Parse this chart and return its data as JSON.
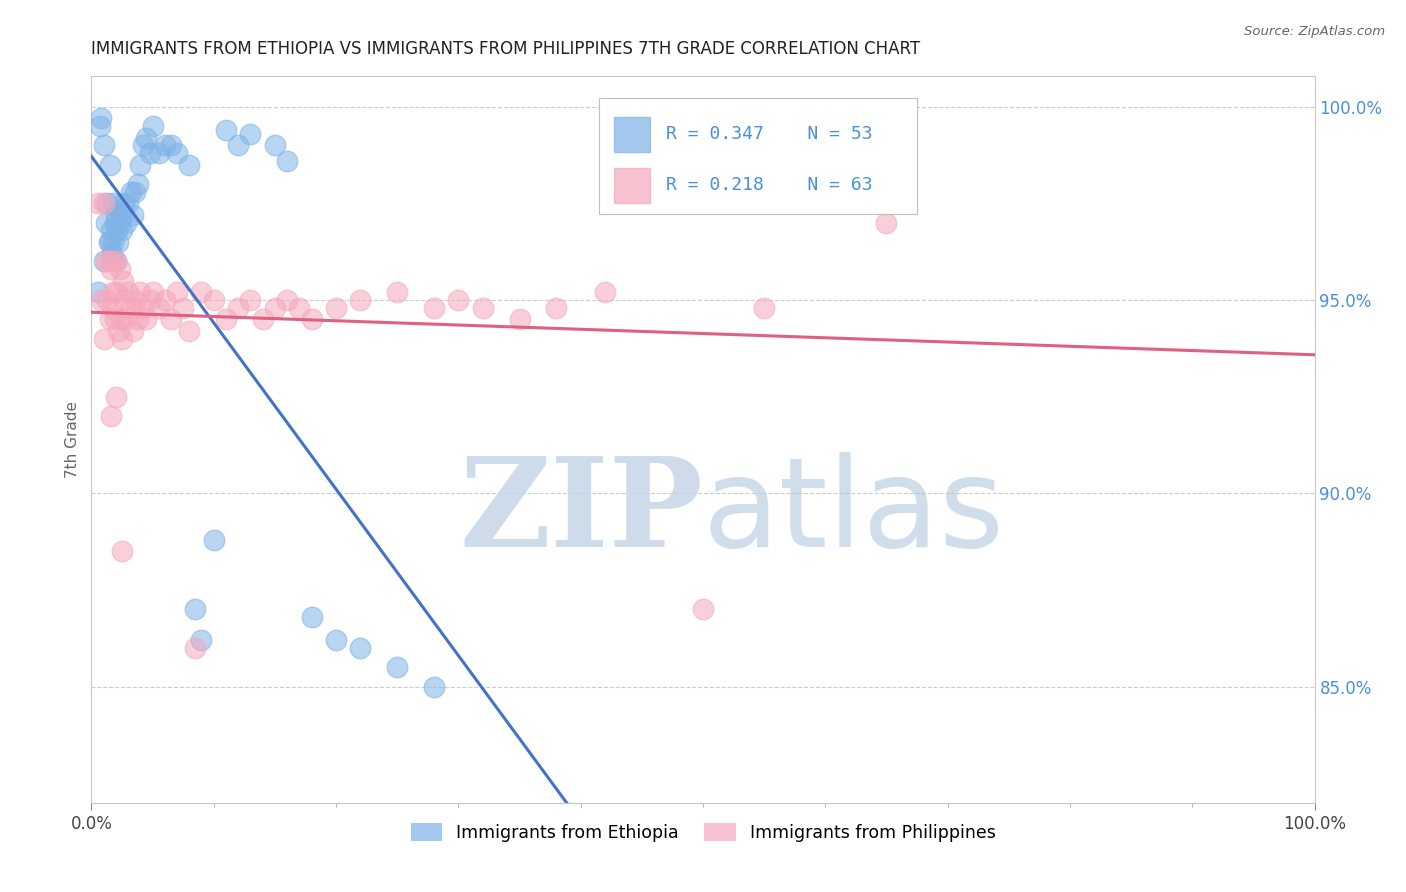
{
  "title": "IMMIGRANTS FROM ETHIOPIA VS IMMIGRANTS FROM PHILIPPINES 7TH GRADE CORRELATION CHART",
  "source": "Source: ZipAtlas.com",
  "ylabel": "7th Grade",
  "xlim": [
    0.0,
    1.0
  ],
  "ylim": [
    0.82,
    1.008
  ],
  "yticks": [
    0.85,
    0.9,
    0.95,
    1.0
  ],
  "ytick_labels": [
    "85.0%",
    "90.0%",
    "95.0%",
    "100.0%"
  ],
  "xtick_labels": [
    "0.0%",
    "100.0%"
  ],
  "legend_label1": "Immigrants from Ethiopia",
  "legend_label2": "Immigrants from Philippines",
  "R1": 0.347,
  "N1": 53,
  "R2": 0.218,
  "N2": 63,
  "blue_color": "#7fb3e8",
  "pink_color": "#f5a8bb",
  "blue_line_color": "#4472c4",
  "pink_line_color": "#e06080",
  "background_color": "#ffffff",
  "grid_color": "#c8c8c8",
  "watermark_zip_color": "#c5d5e8",
  "watermark_atlas_color": "#b0c8dc",
  "blue_x": [
    0.005,
    0.007,
    0.008,
    0.01,
    0.01,
    0.012,
    0.013,
    0.014,
    0.015,
    0.015,
    0.016,
    0.017,
    0.018,
    0.018,
    0.019,
    0.02,
    0.02,
    0.021,
    0.022,
    0.023,
    0.024,
    0.025,
    0.026,
    0.027,
    0.028,
    0.03,
    0.032,
    0.034,
    0.036,
    0.038,
    0.04,
    0.042,
    0.045,
    0.048,
    0.05,
    0.055,
    0.06,
    0.065,
    0.07,
    0.08,
    0.085,
    0.09,
    0.1,
    0.11,
    0.12,
    0.13,
    0.15,
    0.16,
    0.18,
    0.2,
    0.22,
    0.25,
    0.28
  ],
  "blue_y": [
    0.952,
    0.995,
    0.997,
    0.96,
    0.99,
    0.97,
    0.975,
    0.965,
    0.965,
    0.985,
    0.968,
    0.962,
    0.965,
    0.975,
    0.97,
    0.96,
    0.972,
    0.968,
    0.965,
    0.97,
    0.973,
    0.968,
    0.972,
    0.975,
    0.97,
    0.975,
    0.978,
    0.972,
    0.978,
    0.98,
    0.985,
    0.99,
    0.992,
    0.988,
    0.995,
    0.988,
    0.99,
    0.99,
    0.988,
    0.985,
    0.87,
    0.862,
    0.888,
    0.994,
    0.99,
    0.993,
    0.99,
    0.986,
    0.868,
    0.862,
    0.86,
    0.855,
    0.85
  ],
  "pink_x": [
    0.005,
    0.008,
    0.01,
    0.01,
    0.012,
    0.013,
    0.015,
    0.015,
    0.016,
    0.017,
    0.018,
    0.019,
    0.02,
    0.021,
    0.022,
    0.023,
    0.024,
    0.025,
    0.026,
    0.027,
    0.028,
    0.03,
    0.032,
    0.034,
    0.036,
    0.038,
    0.04,
    0.042,
    0.045,
    0.048,
    0.05,
    0.055,
    0.06,
    0.065,
    0.07,
    0.075,
    0.08,
    0.085,
    0.09,
    0.1,
    0.11,
    0.12,
    0.13,
    0.14,
    0.15,
    0.16,
    0.17,
    0.18,
    0.2,
    0.22,
    0.25,
    0.28,
    0.3,
    0.32,
    0.35,
    0.38,
    0.42,
    0.5,
    0.55,
    0.65,
    0.016,
    0.02,
    0.025
  ],
  "pink_y": [
    0.975,
    0.95,
    0.94,
    0.975,
    0.96,
    0.95,
    0.96,
    0.945,
    0.958,
    0.948,
    0.952,
    0.945,
    0.96,
    0.952,
    0.942,
    0.958,
    0.945,
    0.94,
    0.955,
    0.95,
    0.945,
    0.952,
    0.948,
    0.942,
    0.95,
    0.945,
    0.952,
    0.948,
    0.945,
    0.95,
    0.952,
    0.948,
    0.95,
    0.945,
    0.952,
    0.948,
    0.942,
    0.86,
    0.952,
    0.95,
    0.945,
    0.948,
    0.95,
    0.945,
    0.948,
    0.95,
    0.948,
    0.945,
    0.948,
    0.95,
    0.952,
    0.948,
    0.95,
    0.948,
    0.945,
    0.948,
    0.952,
    0.87,
    0.948,
    0.97,
    0.92,
    0.925,
    0.885
  ]
}
